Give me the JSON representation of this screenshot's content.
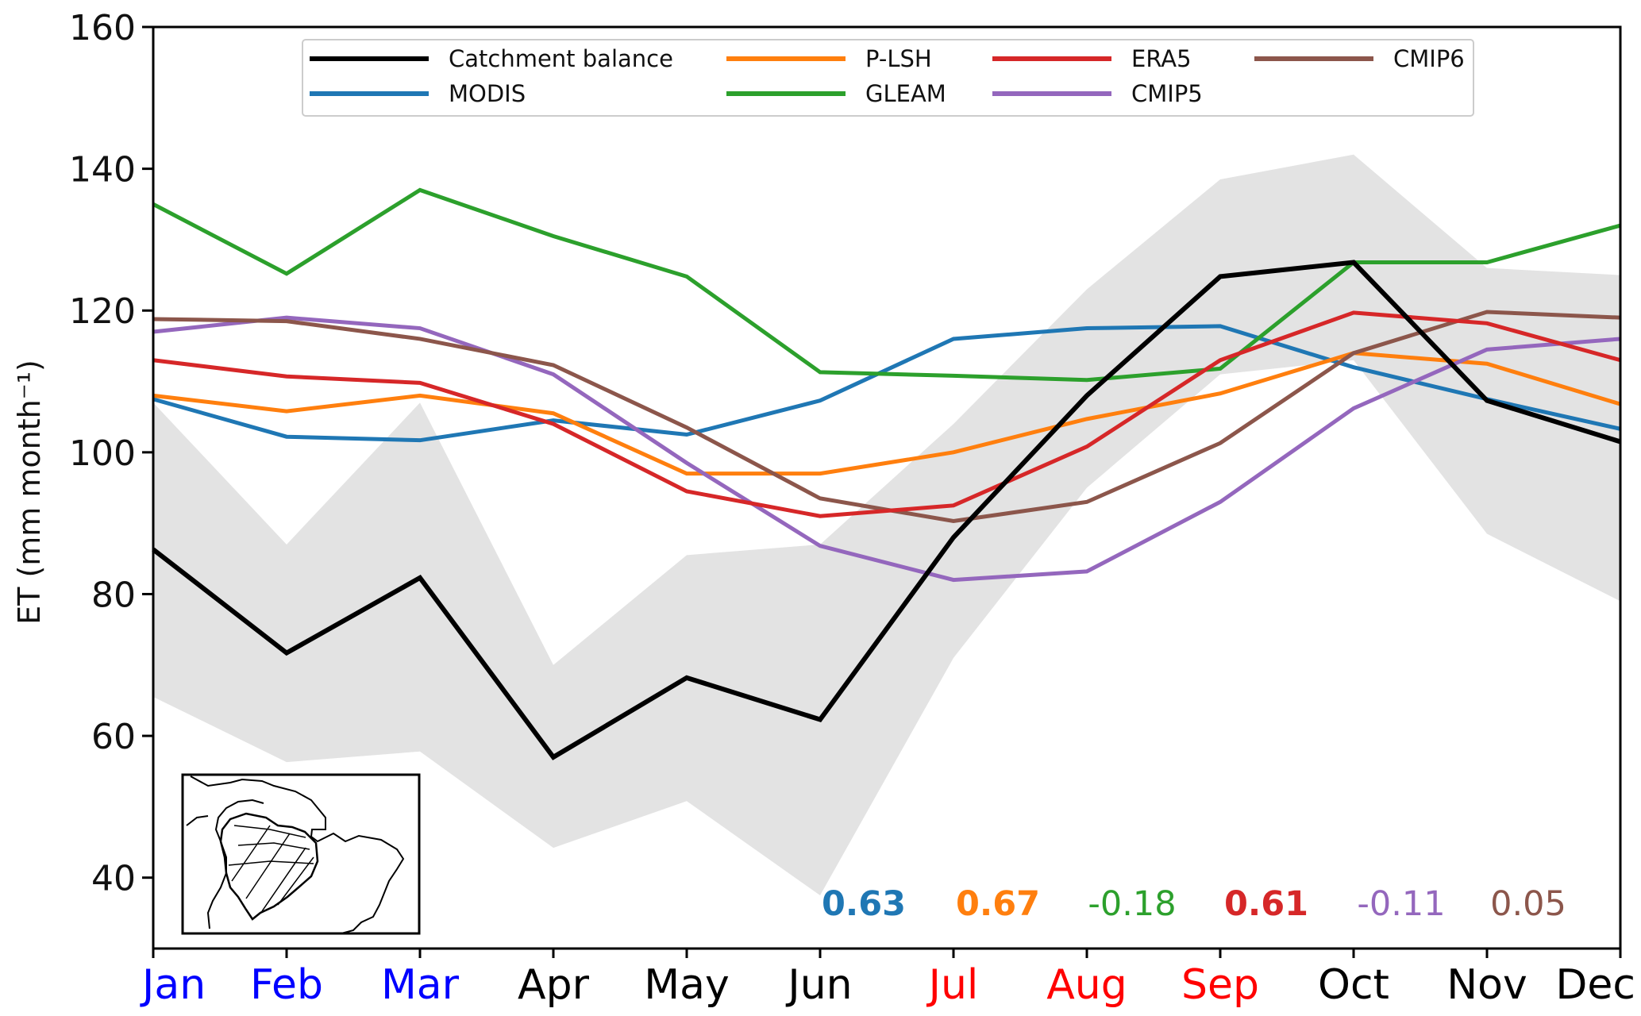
{
  "chart_data": {
    "type": "line",
    "xlabel": "",
    "ylabel": "ET (mm month⁻¹)",
    "ylim": [
      30,
      160
    ],
    "yticks": [
      40,
      60,
      80,
      100,
      120,
      140,
      160
    ],
    "x": [
      "Jan",
      "Feb",
      "Mar",
      "Apr",
      "May",
      "Jun",
      "Jul",
      "Aug",
      "Sep",
      "Oct",
      "Nov",
      "Dec"
    ],
    "x_label_colors": [
      "#0000ff",
      "#0000ff",
      "#0000ff",
      "#000000",
      "#000000",
      "#000000",
      "#ff0000",
      "#ff0000",
      "#ff0000",
      "#000000",
      "#000000",
      "#000000"
    ],
    "legend_position": "top-center",
    "grid": false,
    "series": [
      {
        "name": "Catchment balance",
        "color": "#000000",
        "values": [
          86.3,
          71.7,
          82.3,
          57.0,
          68.2,
          62.3,
          88.0,
          108.0,
          124.8,
          126.8,
          107.3,
          101.5
        ]
      },
      {
        "name": "MODIS",
        "color": "#1f77b4",
        "values": [
          107.5,
          102.2,
          101.7,
          104.5,
          102.5,
          107.3,
          116.0,
          117.5,
          117.8,
          112.0,
          107.5,
          103.3
        ]
      },
      {
        "name": "P-LSH",
        "color": "#ff7f0e",
        "values": [
          108.0,
          105.8,
          108.0,
          105.5,
          97.0,
          97.0,
          100.0,
          104.7,
          108.3,
          114.0,
          112.5,
          106.8
        ]
      },
      {
        "name": "GLEAM",
        "color": "#2ca02c",
        "values": [
          135.0,
          125.2,
          137.0,
          130.5,
          124.8,
          111.3,
          110.8,
          110.2,
          111.8,
          126.8,
          126.8,
          132.0
        ]
      },
      {
        "name": "ERA5",
        "color": "#d62728",
        "values": [
          113.0,
          110.7,
          109.8,
          104.0,
          94.5,
          91.0,
          92.5,
          100.8,
          113.0,
          119.7,
          118.2,
          113.0
        ]
      },
      {
        "name": "CMIP5",
        "color": "#9467bd",
        "values": [
          117.0,
          119.0,
          117.5,
          111.0,
          98.5,
          86.8,
          82.0,
          83.2,
          93.0,
          106.2,
          114.5,
          116.0
        ]
      },
      {
        "name": "CMIP6",
        "color": "#8c564b",
        "values": [
          118.8,
          118.5,
          116.0,
          112.3,
          103.5,
          93.5,
          90.3,
          93.0,
          101.3,
          114.0,
          119.8,
          119.0
        ]
      }
    ],
    "shaded_range": {
      "color": "#e3e3e3",
      "upper": [
        107.0,
        87.0,
        107.0,
        70.0,
        85.5,
        87.0,
        104.0,
        123.0,
        138.5,
        142.0,
        126.0,
        125.0
      ],
      "lower": [
        65.5,
        56.3,
        57.8,
        44.2,
        50.8,
        37.5,
        71.0,
        95.0,
        111.0,
        113.0,
        88.5,
        79.0
      ]
    },
    "correlations": [
      {
        "text": "0.63",
        "color": "#1f77b4",
        "bold": true
      },
      {
        "text": "0.67",
        "color": "#ff7f0e",
        "bold": true
      },
      {
        "text": "-0.18",
        "color": "#2ca02c",
        "bold": false
      },
      {
        "text": "0.61",
        "color": "#d62728",
        "bold": true
      },
      {
        "text": "-0.11",
        "color": "#9467bd",
        "bold": false
      },
      {
        "text": "0.05",
        "color": "#8c564b",
        "bold": false
      }
    ],
    "inset_map": "amazon-basin-map"
  }
}
